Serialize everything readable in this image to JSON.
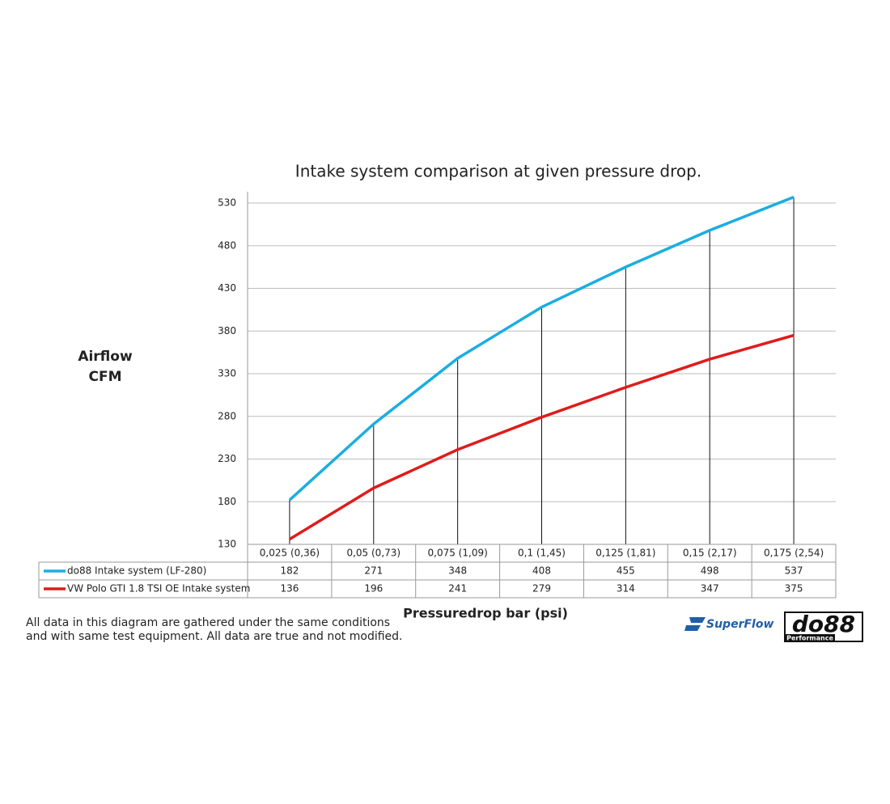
{
  "chart_data": {
    "type": "line",
    "title": "Intake system comparison at given pressure drop.",
    "ylabel": [
      "Airflow",
      "CFM"
    ],
    "xlabel": "Pressuredrop bar (psi)",
    "categories": [
      "0,025 (0,36)",
      "0,05 (0,73)",
      "0,075 (1,09)",
      "0,1 (1,45)",
      "0,125 (1,81)",
      "0,15 (2,17)",
      "0,175 (2,54)"
    ],
    "series": [
      {
        "name": "do88 Intake system (LF-280)",
        "color": "#1aaee0",
        "values": [
          182,
          271,
          348,
          408,
          455,
          498,
          537
        ]
      },
      {
        "name": "VW Polo GTI 1.8 TSI OE Intake system",
        "color": "#e01b1b",
        "values": [
          136,
          196,
          241,
          279,
          314,
          347,
          375
        ]
      }
    ],
    "ylim": [
      130,
      530
    ],
    "yticks": [
      130,
      180,
      230,
      280,
      330,
      380,
      430,
      480,
      530
    ],
    "grid": true,
    "footnote": [
      "All data in this diagram are gathered under the same conditions",
      "and with same test equipment. All data are true and not modified."
    ],
    "logos": [
      "SuperFlow",
      "do88",
      "Performance"
    ]
  }
}
